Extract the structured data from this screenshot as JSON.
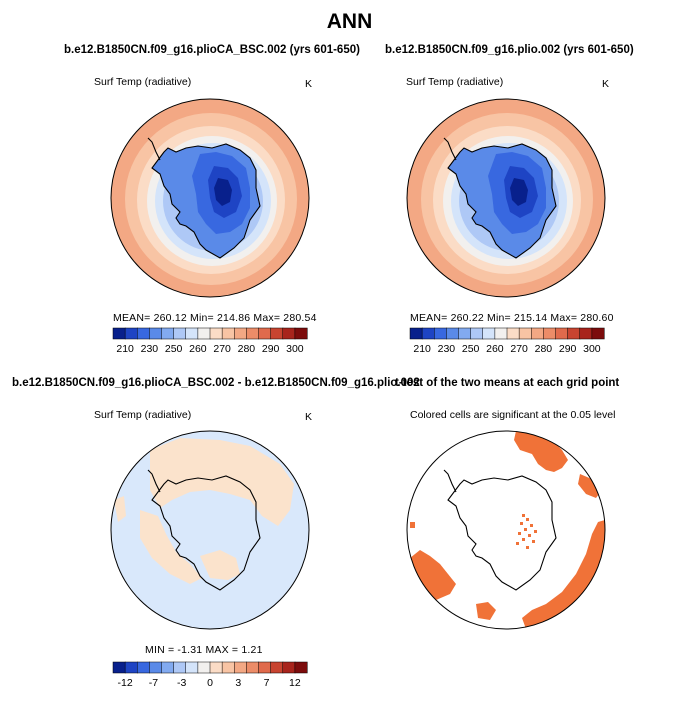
{
  "main_title": "ANN",
  "chart_data": [
    {
      "type": "heatmap",
      "title": "b.e12.B1850CN.f09_g16.plioCA_BSC.002 (yrs 601-650)",
      "subtitle": "Surf Temp (radiative)",
      "units": "K",
      "stats": "MEAN= 260.12   Min= 214.86   Max= 280.54",
      "mean": 260.12,
      "min": 214.86,
      "max": 280.54,
      "colorbar": {
        "labels": [
          "210",
          "230",
          "250",
          "260",
          "270",
          "280",
          "290",
          "300"
        ],
        "colors": [
          "#08208c",
          "#1e44c4",
          "#3868e0",
          "#5a8ae8",
          "#82aaf0",
          "#aec8f6",
          "#d4e4fa",
          "#f2f0ee",
          "#fbdcc6",
          "#f8c4a4",
          "#f3a884",
          "#ec8c68",
          "#e06a4c",
          "#c84430",
          "#a8241c",
          "#7c0c0c"
        ]
      }
    },
    {
      "type": "heatmap",
      "title": "b.e12.B1850CN.f09_g16.plio.002 (yrs 601-650)",
      "subtitle": "Surf Temp (radiative)",
      "units": "K",
      "stats": "MEAN= 260.22   Min= 215.14   Max= 280.60",
      "mean": 260.22,
      "min": 215.14,
      "max": 280.6,
      "colorbar": {
        "labels": [
          "210",
          "230",
          "250",
          "260",
          "270",
          "280",
          "290",
          "300"
        ],
        "colors": [
          "#08208c",
          "#1e44c4",
          "#3868e0",
          "#5a8ae8",
          "#82aaf0",
          "#aec8f6",
          "#d4e4fa",
          "#f2f0ee",
          "#fbdcc6",
          "#f8c4a4",
          "#f3a884",
          "#ec8c68",
          "#e06a4c",
          "#c84430",
          "#a8241c",
          "#7c0c0c"
        ]
      }
    },
    {
      "type": "heatmap",
      "title": "b.e12.B1850CN.f09_g16.plioCA_BSC.002 - b.e12.B1850CN.f09_g16.plio.002",
      "subtitle": "Surf Temp (radiative)",
      "units": "K",
      "stats": "MIN =   -1.31   MAX =    1.21",
      "min": -1.31,
      "max": 1.21,
      "colorbar": {
        "labels": [
          "-12",
          "-7",
          "-3",
          "0",
          "3",
          "7",
          "12"
        ],
        "colors": [
          "#08208c",
          "#1e44c4",
          "#3868e0",
          "#5a8ae8",
          "#82aaf0",
          "#aec8f6",
          "#d4e4fa",
          "#f2f0ee",
          "#fbdcc6",
          "#f8c4a4",
          "#f3a884",
          "#ec8c68",
          "#e06a4c",
          "#c84430",
          "#a8241c",
          "#7c0c0c"
        ]
      }
    },
    {
      "type": "heatmap",
      "title": "t-test of the two means at each grid point",
      "subtitle": "Colored cells are significant at the 0.05 level",
      "significance_level": 0.05,
      "significant_color": "#f07238"
    }
  ]
}
